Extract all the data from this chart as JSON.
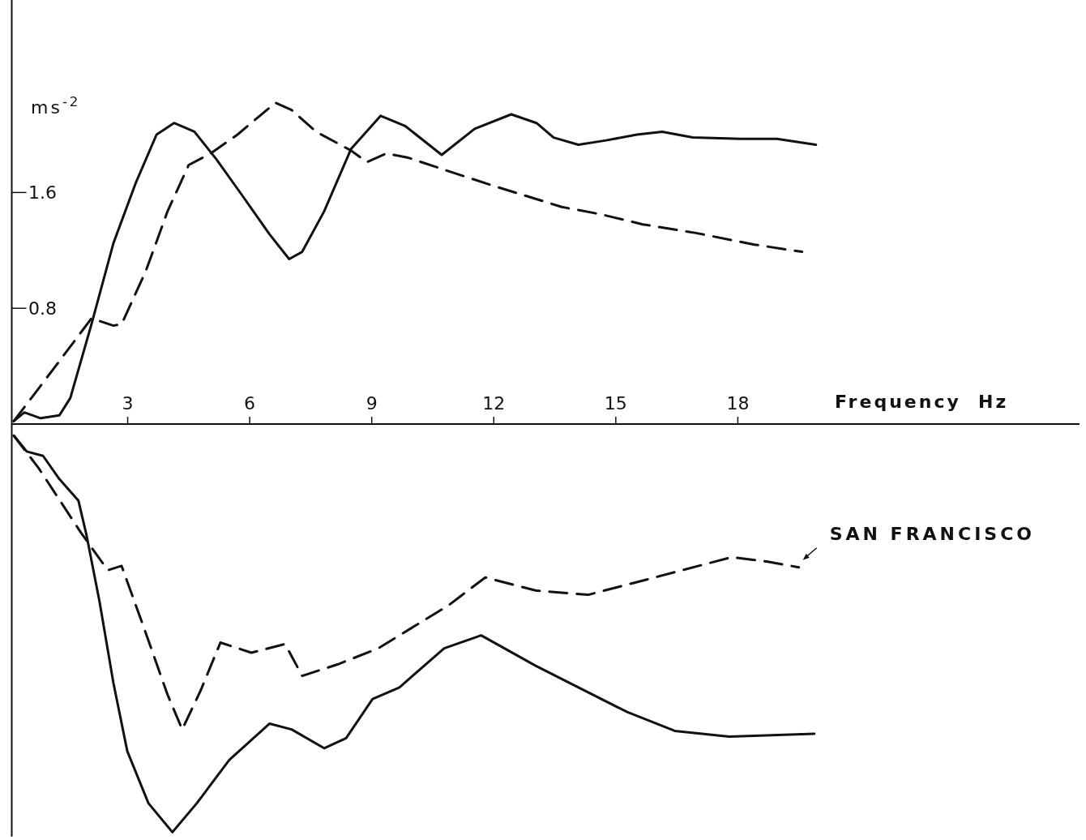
{
  "chart_data": {
    "type": "line",
    "xlabel": "Frequency  Hz",
    "ylabel": "ms$^{-2}$",
    "xlim": [
      0.15,
      26.4
    ],
    "ylim": [
      -2.85,
      2.93
    ],
    "xticks": [
      3,
      6,
      9,
      12,
      15,
      18
    ],
    "yticks": [
      0.8,
      1.6
    ],
    "series": [
      {
        "color": "#111111",
        "line_style": "solid",
        "x": [
          0.2,
          0.46,
          0.86,
          1.32,
          1.59,
          2.11,
          2.65,
          3.19,
          3.71,
          4.14,
          4.64,
          5.18,
          5.84,
          6.49,
          6.97,
          7.29,
          7.83,
          8.49,
          9.22,
          9.82,
          10.72,
          11.53,
          12.43,
          13.05,
          13.47,
          14.08,
          14.76,
          15.52,
          16.14,
          16.89,
          18.07,
          18.96,
          19.92
        ],
        "values": [
          0.02,
          0.08,
          0.04,
          0.06,
          0.18,
          0.69,
          1.25,
          1.66,
          2.0,
          2.08,
          2.02,
          1.83,
          1.57,
          1.31,
          1.14,
          1.19,
          1.47,
          1.9,
          2.13,
          2.06,
          1.86,
          2.04,
          2.14,
          2.08,
          1.98,
          1.93,
          1.96,
          2.0,
          2.02,
          1.98,
          1.97,
          1.97,
          1.93
        ]
      },
      {
        "color": "#111111",
        "line_style": "dashed",
        "x": [
          0.2,
          1.2,
          2.11,
          2.65,
          2.85,
          3.45,
          3.98,
          4.5,
          5.04,
          5.7,
          6.63,
          7.03,
          7.63,
          8.49,
          8.88,
          9.36,
          9.9,
          10.86,
          11.95,
          13.67,
          14.62,
          15.66,
          16.97,
          18.41,
          19.58
        ],
        "values": [
          0.02,
          0.39,
          0.73,
          0.68,
          0.69,
          1.06,
          1.47,
          1.79,
          1.87,
          2.0,
          2.22,
          2.17,
          2.02,
          1.89,
          1.81,
          1.87,
          1.84,
          1.75,
          1.65,
          1.5,
          1.45,
          1.38,
          1.32,
          1.24,
          1.19
        ]
      },
      {
        "color": "#111111",
        "line_style": "solid",
        "x": [
          0.2,
          0.52,
          0.92,
          1.32,
          1.79,
          1.99,
          2.31,
          2.65,
          2.99,
          3.51,
          4.1,
          4.7,
          5.5,
          6.49,
          7.03,
          7.83,
          8.37,
          9.02,
          9.68,
          10.78,
          11.69,
          13.03,
          15.28,
          16.45,
          17.79,
          19.88
        ],
        "values": [
          -0.08,
          -0.19,
          -0.22,
          -0.38,
          -0.53,
          -0.77,
          -1.23,
          -1.79,
          -2.26,
          -2.62,
          -2.82,
          -2.62,
          -2.32,
          -2.07,
          -2.11,
          -2.24,
          -2.17,
          -1.9,
          -1.82,
          -1.55,
          -1.46,
          -1.67,
          -1.99,
          -2.12,
          -2.16,
          -2.14
        ]
      },
      {
        "name": "SAN FRANCISCO",
        "color": "#111111",
        "line_style": "dashed",
        "x": [
          0.2,
          0.8,
          1.85,
          2.51,
          2.85,
          3.39,
          3.98,
          4.34,
          4.78,
          5.28,
          6.04,
          6.87,
          7.29,
          8.17,
          9.16,
          10.9,
          11.79,
          13.03,
          14.32,
          15.82,
          17.85,
          18.71,
          19.5
        ],
        "values": [
          -0.08,
          -0.3,
          -0.75,
          -1.01,
          -0.98,
          -1.4,
          -1.87,
          -2.11,
          -1.85,
          -1.51,
          -1.58,
          -1.52,
          -1.74,
          -1.66,
          -1.55,
          -1.25,
          -1.06,
          -1.15,
          -1.18,
          -1.07,
          -0.92,
          -0.95,
          -0.99
        ]
      }
    ]
  }
}
